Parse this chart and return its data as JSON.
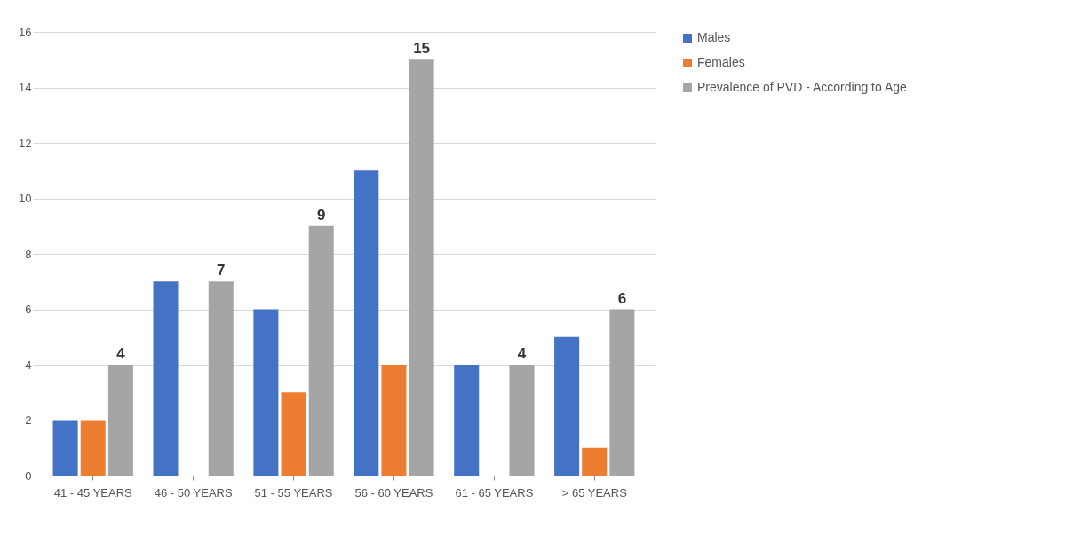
{
  "chart_data": {
    "type": "bar",
    "categories": [
      "41 - 45 YEARS",
      "46 - 50 YEARS",
      "51 - 55 YEARS",
      "56 - 60 YEARS",
      "61 - 65 YEARS",
      "> 65 YEARS"
    ],
    "series": [
      {
        "name": "Males",
        "color": "#4472c4",
        "values": [
          2,
          7,
          6,
          11,
          4,
          5
        ]
      },
      {
        "name": "Females",
        "color": "#ed7d31",
        "values": [
          2,
          null,
          3,
          4,
          null,
          1
        ]
      },
      {
        "name": "Prevalence of PVD - According to Age",
        "color": "#a5a5a5",
        "values": [
          4,
          7,
          9,
          15,
          4,
          6
        ],
        "value_labels": [
          "4",
          "7",
          "9",
          "15",
          "4",
          "6"
        ]
      }
    ],
    "ylim": [
      0,
      16
    ],
    "yticks": [
      0,
      2,
      4,
      6,
      8,
      10,
      12,
      14,
      16
    ],
    "grid": "y",
    "legend": "right"
  }
}
